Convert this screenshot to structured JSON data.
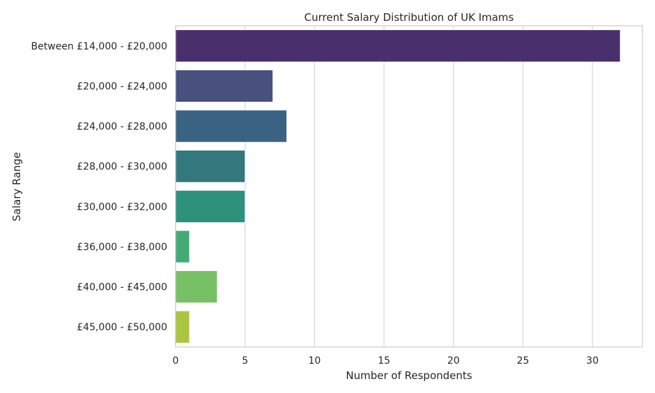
{
  "chart_data": {
    "type": "bar",
    "orientation": "horizontal",
    "title": "Current Salary Distribution of UK Imams",
    "xlabel": "Number of Respondents",
    "ylabel": "Salary Range",
    "categories": [
      "Between £14,000 - £20,000",
      "£20,000 - £24,000",
      "£24,000 - £28,000",
      "£28,000 - £30,000",
      "£30,000 - £32,000",
      "£36,000 - £38,000",
      "£40,000 - £45,000",
      "£45,000 - £50,000"
    ],
    "values": [
      32,
      7,
      8,
      5,
      5,
      1,
      3,
      1
    ],
    "colors": [
      "#4a2f6d",
      "#48507e",
      "#3a6383",
      "#33787d",
      "#2d917c",
      "#44aa74",
      "#78c066",
      "#aac53f"
    ],
    "xlim": [
      0,
      33.6
    ],
    "xticks": [
      0,
      5,
      10,
      15,
      20,
      25,
      30
    ],
    "grid": "vertical",
    "legend": "none"
  }
}
